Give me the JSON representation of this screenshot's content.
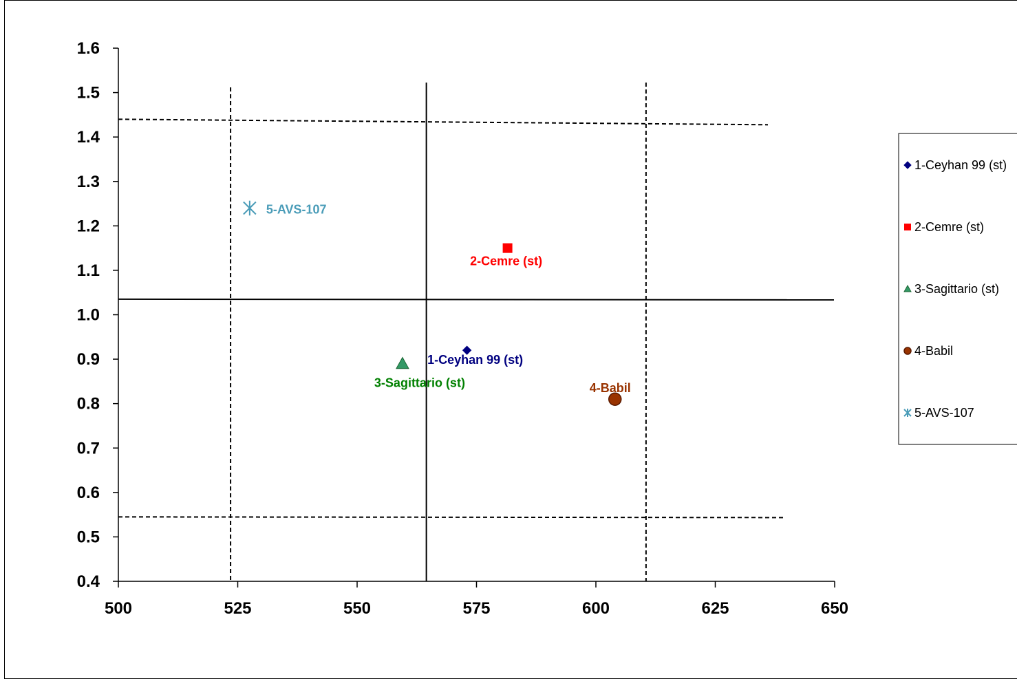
{
  "chart_data": {
    "type": "scatter",
    "title": "",
    "xlabel": "",
    "ylabel": "",
    "xlim": [
      500,
      650
    ],
    "ylim": [
      0.4,
      1.6
    ],
    "x_ticks": [
      "500",
      "525",
      "550",
      "575",
      "600",
      "625",
      "650"
    ],
    "y_ticks": [
      "0.4",
      "0.5",
      "0.6",
      "0.7",
      "0.8",
      "0.9",
      "1.0",
      "1.1",
      "1.2",
      "1.3",
      "1.4",
      "1.5",
      "1.6"
    ],
    "x_tick_values": [
      500,
      525,
      550,
      575,
      600,
      625,
      650
    ],
    "y_tick_values": [
      0.4,
      0.5,
      0.6,
      0.7,
      0.8,
      0.9,
      1.0,
      1.1,
      1.2,
      1.3,
      1.4,
      1.5,
      1.6
    ],
    "grid": false,
    "legend_position": "right",
    "series": [
      {
        "name": "1-Ceyhan 99 (st)",
        "x": 573,
        "y": 0.92,
        "marker": "diamond",
        "color": "#000080",
        "label": "1-Ceyhan 99 (st)",
        "label_color": "#000080"
      },
      {
        "name": "2-Cemre (st)",
        "x": 581.5,
        "y": 1.15,
        "marker": "square",
        "color": "#ff0000",
        "label": "2-Cemre (st)",
        "label_color": "#ff0000"
      },
      {
        "name": "3-Sagittario (st)",
        "x": 559.5,
        "y": 0.89,
        "marker": "triangle",
        "color": "#339966",
        "label": "3-Sagittario (st)",
        "label_color": "#008000"
      },
      {
        "name": "4-Babil",
        "x": 604,
        "y": 0.81,
        "marker": "circle",
        "color": "#993300",
        "label": "4-Babil",
        "label_color": "#993300"
      },
      {
        "name": "5-AVS-107",
        "x": 527.5,
        "y": 1.24,
        "marker": "asterisk",
        "color": "#4a9cb8",
        "label": "5-AVS-107",
        "label_color": "#4a9cb8"
      }
    ],
    "mean_lines": {
      "vertical_x": 564.5,
      "horizontal_y": 1.035
    },
    "confidence_lines": {
      "vertical_x": [
        523.5,
        610.5
      ],
      "horizontal_y": [
        1.44,
        0.545
      ]
    }
  }
}
